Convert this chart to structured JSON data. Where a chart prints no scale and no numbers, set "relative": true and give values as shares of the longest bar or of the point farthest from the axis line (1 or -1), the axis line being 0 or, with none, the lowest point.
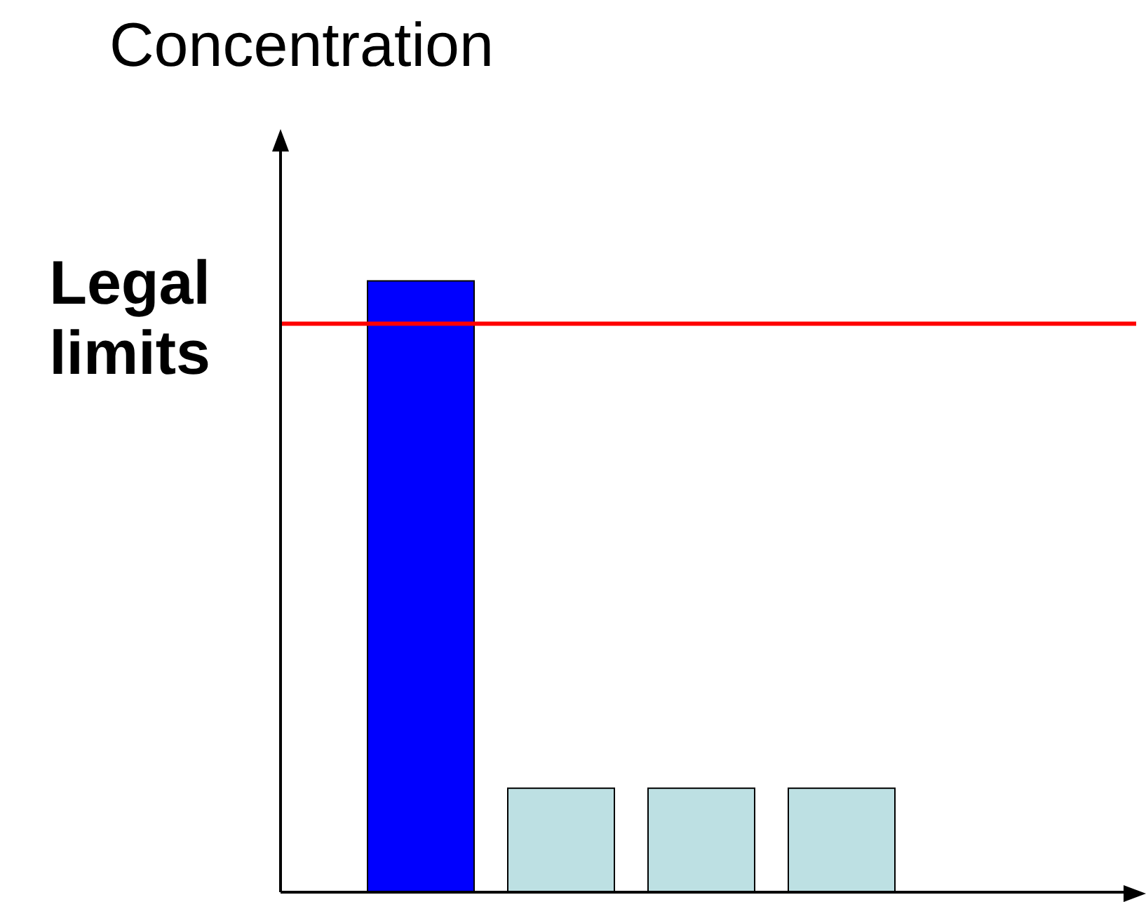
{
  "chart_data": {
    "type": "bar",
    "relative": true,
    "ylabel": "Concentration",
    "categories": [
      null,
      null,
      null,
      null
    ],
    "values": [
      1,
      0.17,
      0.17,
      0.17
    ],
    "colors": [
      "#0000ff",
      "#bde0e3",
      "#bde0e3",
      "#bde0e3"
    ],
    "ref_lines": [
      {
        "axis": "y",
        "value": 0.93,
        "label": "Legal limits",
        "color": "#ff0000"
      }
    ]
  }
}
